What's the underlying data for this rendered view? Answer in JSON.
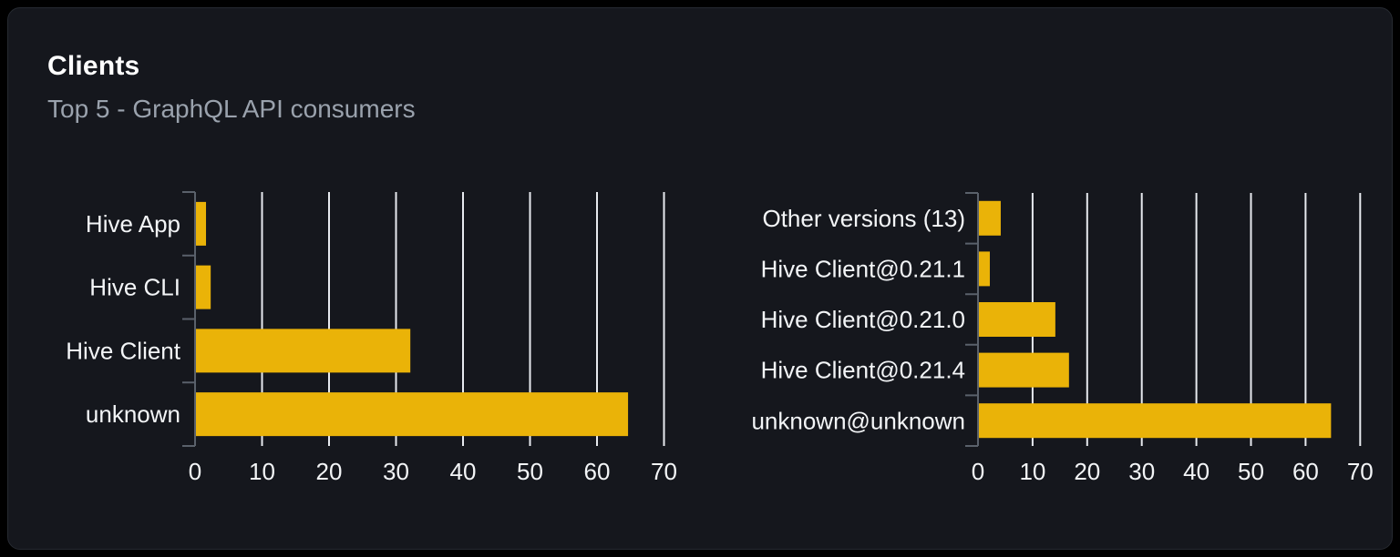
{
  "header": {
    "title": "Clients",
    "subtitle": "Top 5 - GraphQL API consumers"
  },
  "colors": {
    "page_background": "#000000",
    "card_background": "#15171d",
    "card_border": "#262a31",
    "title": "#ffffff",
    "subtitle": "#9aa2ad",
    "bar": "#eab308",
    "gridline": "#e7eaef",
    "axis": "#5a616b",
    "label": "#f3f5f7"
  },
  "chart_data": [
    {
      "type": "bar",
      "orientation": "horizontal",
      "name": "clients-by-name",
      "categories": [
        "Hive App",
        "Hive CLI",
        "Hive Client",
        "unknown"
      ],
      "values": [
        1.5,
        2.2,
        32,
        64.5
      ],
      "xlabel": "",
      "ylabel": "",
      "xlim": [
        0,
        70
      ],
      "xticks": [
        0,
        10,
        20,
        30,
        40,
        50,
        60,
        70
      ],
      "grid": true,
      "legend": "none"
    },
    {
      "type": "bar",
      "orientation": "horizontal",
      "name": "clients-by-version",
      "categories": [
        "Other versions (13)",
        "Hive Client@0.21.1",
        "Hive Client@0.21.0",
        "Hive Client@0.21.4",
        "unknown@unknown"
      ],
      "values": [
        4,
        2,
        14,
        16.5,
        64.5
      ],
      "xlabel": "",
      "ylabel": "",
      "xlim": [
        0,
        70
      ],
      "xticks": [
        0,
        10,
        20,
        30,
        40,
        50,
        60,
        70
      ],
      "grid": true,
      "legend": "none"
    }
  ]
}
